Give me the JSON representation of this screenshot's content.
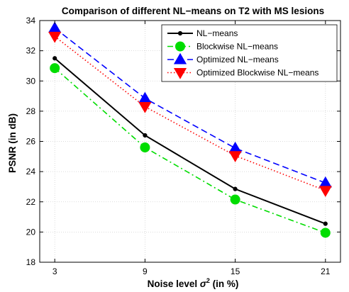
{
  "chart_data": {
    "type": "line",
    "title": "Comparison of different NL−means on T2 with MS lesions",
    "xlabel_prefix": "Noise level ",
    "xlabel_symbol": "σ",
    "xlabel_superscript": "2",
    "xlabel_suffix": " (in %)",
    "ylabel": "PSNR (in dB)",
    "x": [
      3,
      9,
      15,
      21
    ],
    "x_tick_labels": [
      "3",
      "9",
      "15",
      "21"
    ],
    "y_ticks": [
      18,
      20,
      22,
      24,
      26,
      28,
      30,
      32,
      34
    ],
    "y_tick_labels": [
      "18",
      "20",
      "22",
      "24",
      "26",
      "28",
      "30",
      "32",
      "34"
    ],
    "xlim": [
      2,
      22
    ],
    "ylim": [
      18,
      34
    ],
    "grid": true,
    "legend_position": "top-right",
    "series": [
      {
        "name": "NL−means",
        "values": [
          31.5,
          26.4,
          22.85,
          20.55
        ],
        "color": "#000000",
        "line_style": "solid",
        "marker": "dot"
      },
      {
        "name": "Blockwise NL−means",
        "values": [
          30.85,
          25.6,
          22.15,
          19.95
        ],
        "color": "#00dd00",
        "line_style": "dashdot",
        "marker": "circle"
      },
      {
        "name": "Optimized NL−means",
        "values": [
          33.5,
          28.85,
          25.55,
          23.25
        ],
        "color": "#0000ff",
        "line_style": "dashed",
        "marker": "triangle-up"
      },
      {
        "name": "Optimized Blockwise NL−means",
        "values": [
          32.95,
          28.3,
          25.05,
          22.75
        ],
        "color": "#ff0000",
        "line_style": "dotted",
        "marker": "triangle-down"
      }
    ]
  }
}
